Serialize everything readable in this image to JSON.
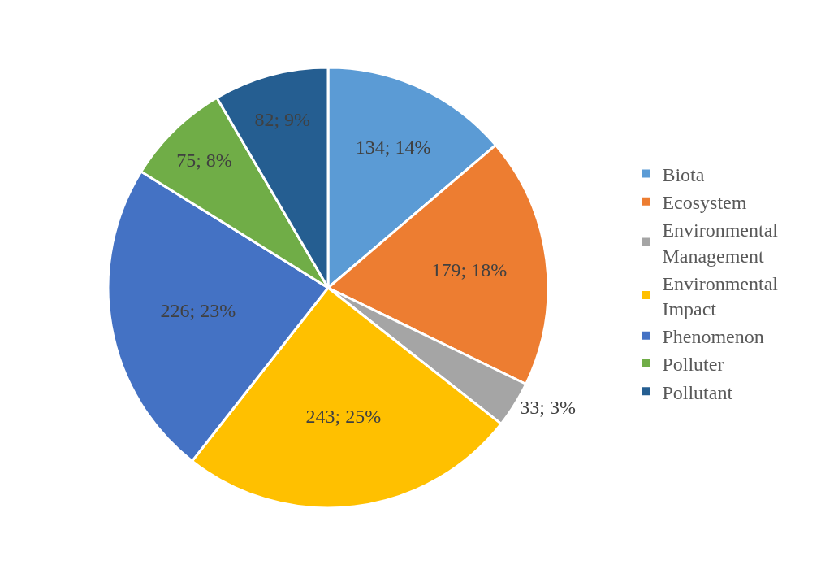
{
  "chart_data": {
    "type": "pie",
    "categories": [
      "Biota",
      "Ecosystem",
      "Environmental Management",
      "Environmental Impact",
      "Phenomenon",
      "Polluter",
      "Pollutant"
    ],
    "values": [
      134,
      179,
      33,
      243,
      226,
      75,
      82
    ],
    "colors": [
      "#5b9bd5",
      "#ed7d31",
      "#a5a5a5",
      "#ffc000",
      "#4472c4",
      "#70ad47",
      "#255e91"
    ],
    "value_labels": [
      "134; 14%",
      "179; 18%",
      "33; 3%",
      "243; 25%",
      "226; 23%",
      "75; 8%",
      "82; 9%"
    ],
    "legend": "right"
  }
}
